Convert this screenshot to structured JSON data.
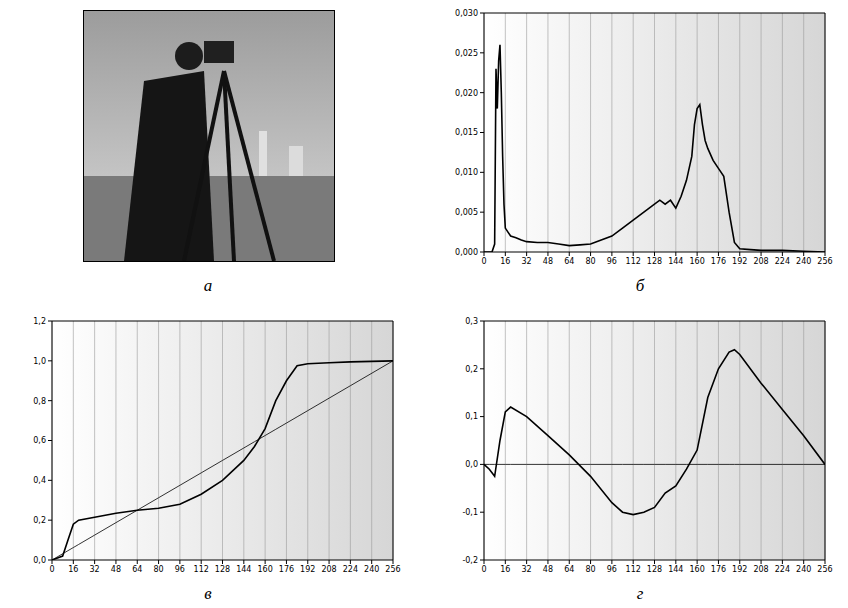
{
  "image": {
    "label": "а"
  },
  "chart_data": [
    {
      "type": "line",
      "title": "б",
      "grid": true,
      "color": "#000000",
      "x": [
        0,
        4,
        6,
        8,
        9,
        10,
        11,
        12,
        13,
        14,
        15,
        16,
        18,
        20,
        24,
        28,
        32,
        40,
        48,
        56,
        64,
        72,
        80,
        88,
        96,
        104,
        112,
        120,
        124,
        128,
        132,
        136,
        140,
        144,
        148,
        152,
        156,
        158,
        160,
        162,
        164,
        166,
        168,
        172,
        176,
        180,
        184,
        188,
        192,
        200,
        208,
        224,
        240,
        256
      ],
      "values": [
        0,
        0,
        0,
        0.001,
        0.023,
        0.018,
        0.024,
        0.026,
        0.02,
        0.012,
        0.006,
        0.003,
        0.0025,
        0.002,
        0.0018,
        0.0015,
        0.0013,
        0.0012,
        0.0012,
        0.001,
        0.0008,
        0.0009,
        0.001,
        0.0015,
        0.002,
        0.003,
        0.004,
        0.005,
        0.0055,
        0.006,
        0.0065,
        0.006,
        0.0065,
        0.0055,
        0.007,
        0.009,
        0.012,
        0.016,
        0.018,
        0.0185,
        0.016,
        0.014,
        0.013,
        0.0115,
        0.0105,
        0.0095,
        0.005,
        0.0012,
        0.0004,
        0.0003,
        0.0002,
        0.0002,
        0.0001,
        0
      ],
      "xlim": [
        0,
        256
      ],
      "xticks": [
        0,
        16,
        32,
        48,
        64,
        80,
        96,
        112,
        128,
        144,
        160,
        176,
        192,
        208,
        224,
        240,
        256
      ],
      "ylim": [
        0,
        0.03
      ],
      "yticks": [
        {
          "value": 0,
          "label": "0,000"
        },
        {
          "value": 0.005,
          "label": "0,005"
        },
        {
          "value": 0.01,
          "label": "0,010"
        },
        {
          "value": 0.015,
          "label": "0,015"
        },
        {
          "value": 0.02,
          "label": "0,020"
        },
        {
          "value": 0.025,
          "label": "0,025"
        },
        {
          "value": 0.03,
          "label": "0,030"
        }
      ]
    },
    {
      "type": "line",
      "title": "в",
      "grid": true,
      "x": [
        0,
        8,
        12,
        16,
        20,
        32,
        48,
        64,
        80,
        96,
        112,
        128,
        144,
        152,
        160,
        168,
        176,
        184,
        192,
        208,
        224,
        256
      ],
      "series": [
        {
          "color": "#000000",
          "values": [
            0,
            0.02,
            0.1,
            0.18,
            0.2,
            0.215,
            0.235,
            0.25,
            0.26,
            0.28,
            0.33,
            0.4,
            0.5,
            0.57,
            0.66,
            0.8,
            0.9,
            0.975,
            0.985,
            0.99,
            0.995,
            1.0
          ]
        },
        {
          "color": "#000000",
          "values": [
            0,
            0.03125,
            0.046875,
            0.0625,
            0.078125,
            0.125,
            0.1875,
            0.25,
            0.3125,
            0.375,
            0.4375,
            0.5,
            0.5625,
            0.59375,
            0.625,
            0.65625,
            0.6875,
            0.71875,
            0.75,
            0.8125,
            0.875,
            1.0
          ]
        }
      ],
      "xlim": [
        0,
        256
      ],
      "xticks": [
        0,
        16,
        32,
        48,
        64,
        80,
        96,
        112,
        128,
        144,
        160,
        176,
        192,
        208,
        224,
        240,
        256
      ],
      "ylim": [
        0,
        1.2
      ],
      "yticks": [
        {
          "value": 0,
          "label": "0,0"
        },
        {
          "value": 0.2,
          "label": "0,2"
        },
        {
          "value": 0.4,
          "label": "0,4"
        },
        {
          "value": 0.6,
          "label": "0,6"
        },
        {
          "value": 0.8,
          "label": "0,8"
        },
        {
          "value": 1.0,
          "label": "1,0"
        },
        {
          "value": 1.2,
          "label": "1,2"
        }
      ]
    },
    {
      "type": "line",
      "title": "г",
      "grid": true,
      "x": [
        0,
        4,
        8,
        12,
        16,
        20,
        32,
        48,
        64,
        80,
        96,
        104,
        112,
        120,
        128,
        136,
        144,
        152,
        160,
        168,
        176,
        184,
        188,
        192,
        208,
        224,
        240,
        256
      ],
      "series": [
        {
          "color": "#000000",
          "values": [
            0,
            -0.01,
            -0.025,
            0.05,
            0.11,
            0.12,
            0.1,
            0.06,
            0.02,
            -0.025,
            -0.08,
            -0.1,
            -0.105,
            -0.1,
            -0.09,
            -0.06,
            -0.045,
            -0.01,
            0.03,
            0.14,
            0.2,
            0.235,
            0.24,
            0.23,
            0.17,
            0.115,
            0.06,
            0
          ]
        },
        {
          "color": "#000000",
          "values": [
            0,
            0,
            0,
            0,
            0,
            0,
            0,
            0,
            0,
            0,
            0,
            0,
            0,
            0,
            0,
            0,
            0,
            0,
            0,
            0,
            0,
            0,
            0,
            0,
            0,
            0,
            0,
            0
          ]
        }
      ],
      "xlim": [
        0,
        256
      ],
      "xticks": [
        0,
        16,
        32,
        48,
        64,
        80,
        96,
        112,
        128,
        144,
        160,
        176,
        192,
        208,
        224,
        240,
        256
      ],
      "ylim": [
        -0.2,
        0.3
      ],
      "yticks": [
        {
          "value": -0.2,
          "label": "-0,2"
        },
        {
          "value": -0.1,
          "label": "-0,1"
        },
        {
          "value": 0,
          "label": "0,0"
        },
        {
          "value": 0.1,
          "label": "0,1"
        },
        {
          "value": 0.2,
          "label": "0,2"
        },
        {
          "value": 0.3,
          "label": "0,3"
        }
      ]
    }
  ]
}
